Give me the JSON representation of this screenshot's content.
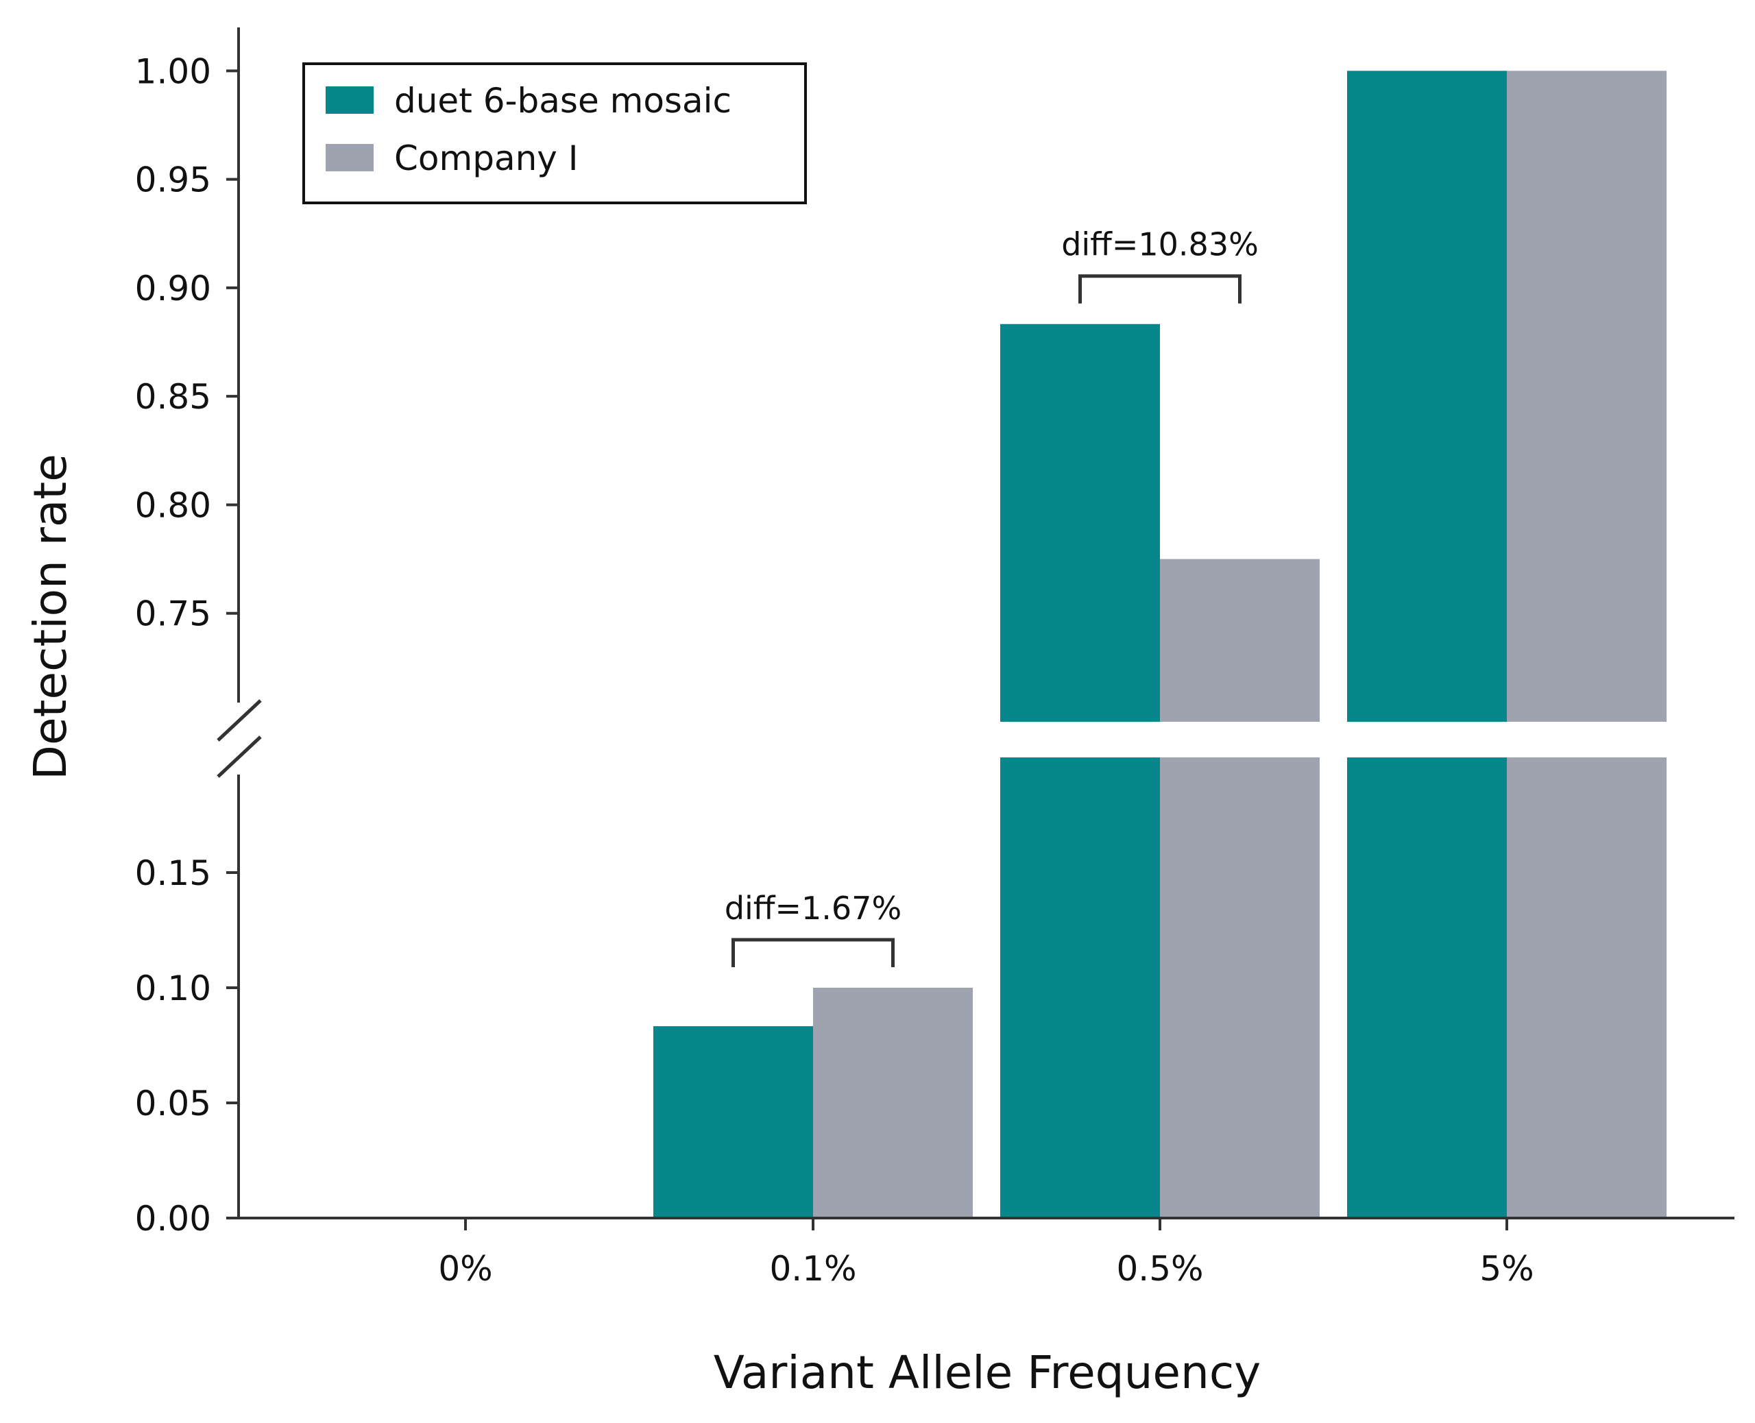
{
  "chart_data": {
    "type": "bar",
    "categories": [
      "0%",
      "0.1%",
      "0.5%",
      "5%"
    ],
    "series": [
      {
        "name": "duet 6-base mosaic",
        "values": [
          0.0,
          0.0833,
          0.8833,
          1.0
        ],
        "color": "#07878b"
      },
      {
        "name": "Company I",
        "values": [
          0.0,
          0.1,
          0.775,
          1.0
        ],
        "color": "#9fa2af"
      }
    ],
    "xlabel": "Variant Allele Frequency",
    "ylabel": "Detection rate",
    "axis_break": true,
    "ylim_lower": [
      0,
      0.2
    ],
    "ylim_upper": [
      0.7,
      1.02
    ],
    "yticks_lower": [
      "0.00",
      "0.05",
      "0.10",
      "0.15"
    ],
    "yticks_upper": [
      "0.75",
      "0.80",
      "0.85",
      "0.90",
      "0.95",
      "1.00"
    ],
    "legend_position": "top-left",
    "grid": false,
    "annotations": [
      {
        "category": "0.1%",
        "text": "diff=1.67%"
      },
      {
        "category": "0.5%",
        "text": "diff=10.83%"
      }
    ]
  }
}
